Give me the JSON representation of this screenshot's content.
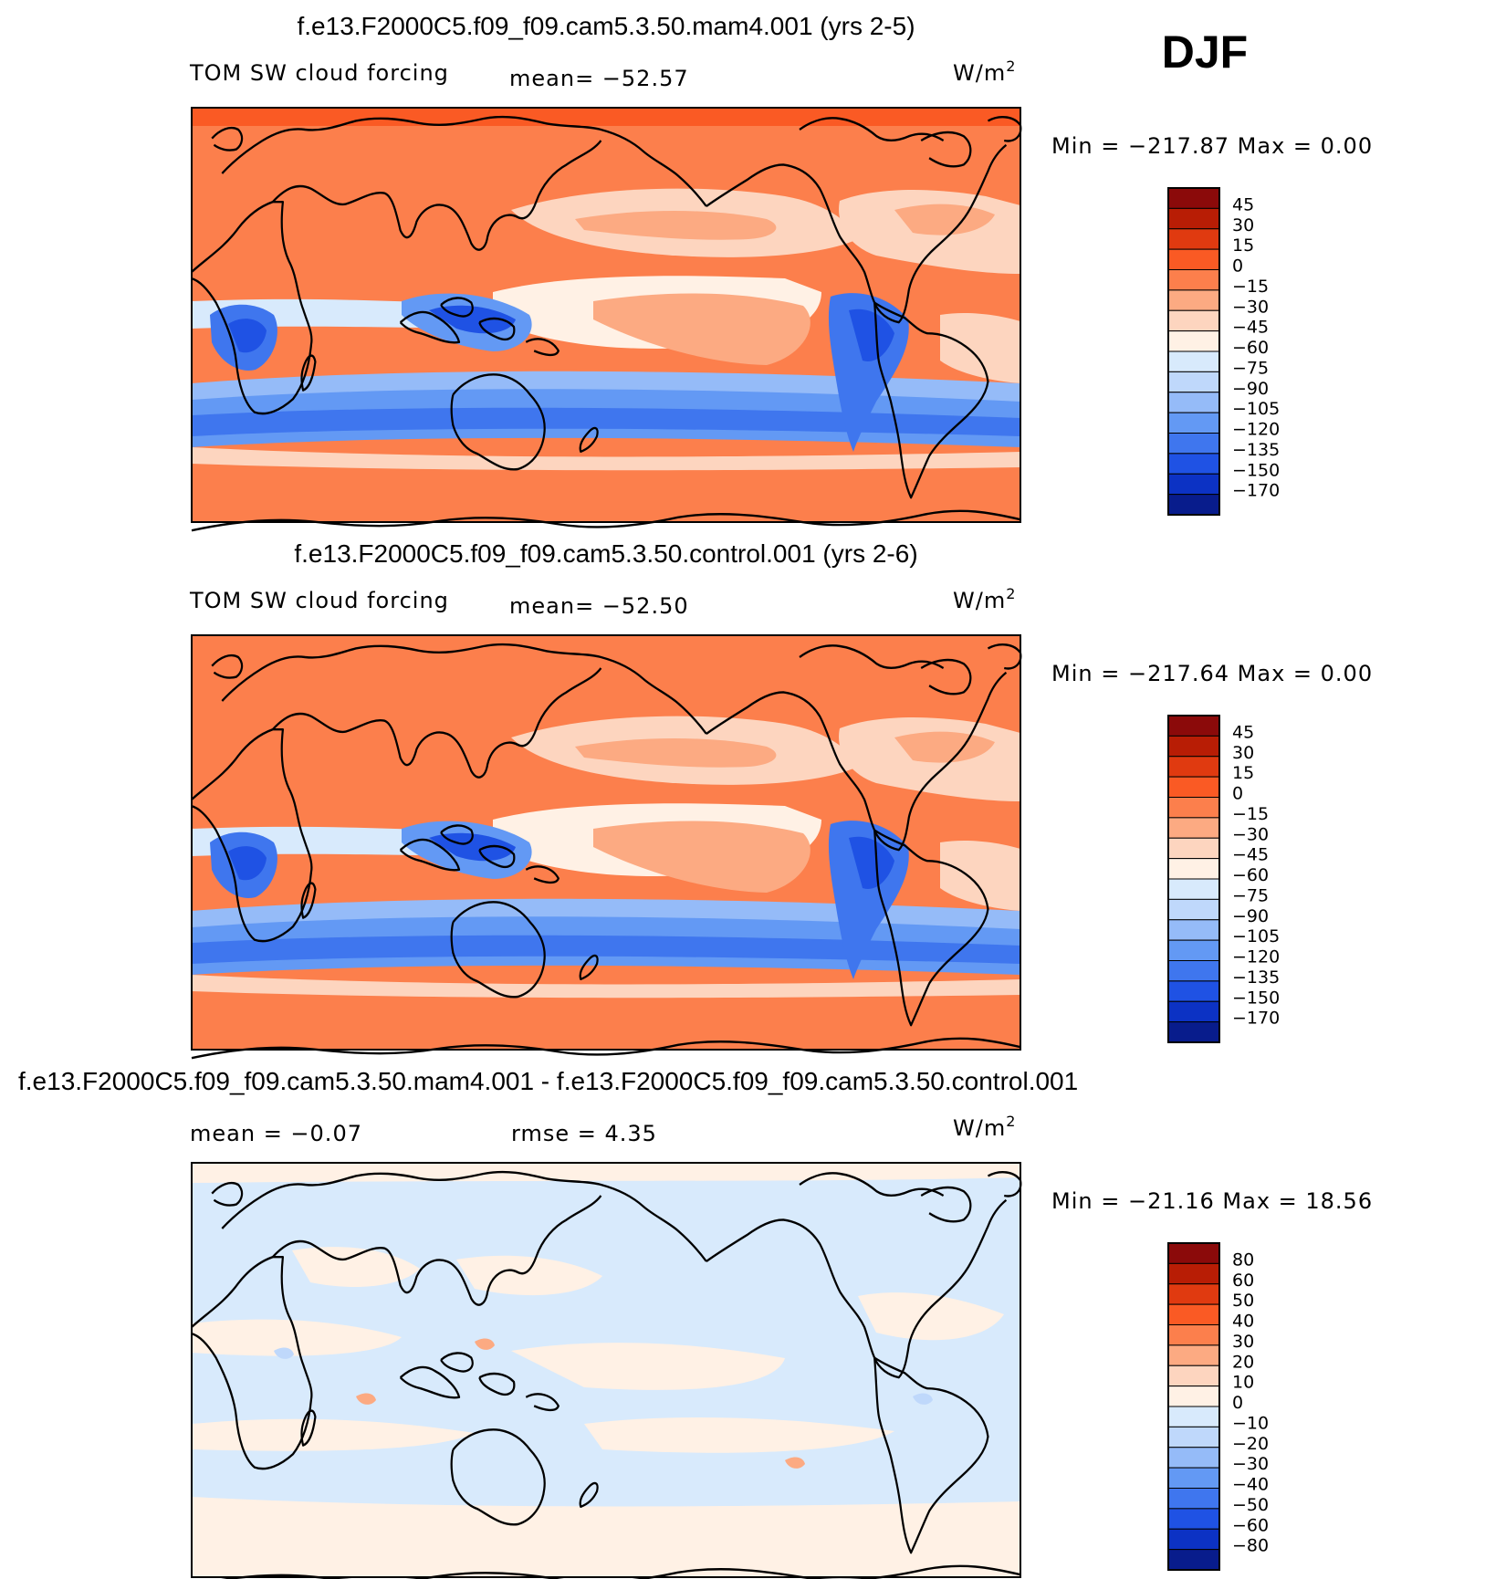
{
  "season_label": "DJF",
  "chart_data": [
    {
      "type": "heatmap",
      "title": "f.e13.F2000C5.f09_f09.cam5.3.50.mam4.001 (yrs 2-5)",
      "left_label": "TOM SW cloud forcing",
      "center_label": "mean= −52.57",
      "units_base": "W/m",
      "units_exp": "2",
      "stats": "Min = −217.87 Max =    0.00",
      "colorbar": {
        "levels": [
          "45",
          "30",
          "15",
          "0",
          "−15",
          "−30",
          "−45",
          "−60",
          "−75",
          "−90",
          "−105",
          "−120",
          "−135",
          "−150",
          "−170"
        ],
        "colors": [
          "#8b0a0a",
          "#b81d05",
          "#e03a10",
          "#fa5a24",
          "#fc7f4c",
          "#fcaa82",
          "#fdd5bf",
          "#fff1e5",
          "#d8eafc",
          "#bfd8fb",
          "#95bbf8",
          "#6399f4",
          "#3f76ee",
          "#1f52e4",
          "#0c32c4",
          "#081c8c"
        ]
      }
    },
    {
      "type": "heatmap",
      "title": "f.e13.F2000C5.f09_f09.cam5.3.50.control.001 (yrs 2-6)",
      "left_label": "TOM SW cloud forcing",
      "center_label": "mean= −52.50",
      "units_base": "W/m",
      "units_exp": "2",
      "stats": "Min = −217.64 Max =    0.00",
      "colorbar": {
        "levels": [
          "45",
          "30",
          "15",
          "0",
          "−15",
          "−30",
          "−45",
          "−60",
          "−75",
          "−90",
          "−105",
          "−120",
          "−135",
          "−150",
          "−170"
        ],
        "colors": [
          "#8b0a0a",
          "#b81d05",
          "#e03a10",
          "#fa5a24",
          "#fc7f4c",
          "#fcaa82",
          "#fdd5bf",
          "#fff1e5",
          "#d8eafc",
          "#bfd8fb",
          "#95bbf8",
          "#6399f4",
          "#3f76ee",
          "#1f52e4",
          "#0c32c4",
          "#081c8c"
        ]
      }
    },
    {
      "type": "heatmap",
      "title": "f.e13.F2000C5.f09_f09.cam5.3.50.mam4.001 - f.e13.F2000C5.f09_f09.cam5.3.50.control.001",
      "left_label": "mean =   −0.07",
      "center_label": "rmse =    4.35",
      "units_base": "W/m",
      "units_exp": "2",
      "stats": "Min = −21.16 Max =  18.56",
      "colorbar": {
        "levels": [
          "80",
          "60",
          "50",
          "40",
          "30",
          "20",
          "10",
          "0",
          "−10",
          "−20",
          "−30",
          "−40",
          "−50",
          "−60",
          "−80"
        ],
        "colors": [
          "#8b0a0a",
          "#b81d05",
          "#e03a10",
          "#fa5a24",
          "#fc7f4c",
          "#fcaa82",
          "#fdd5bf",
          "#fff1e5",
          "#d8eafc",
          "#bfd8fb",
          "#95bbf8",
          "#6399f4",
          "#3f76ee",
          "#1f52e4",
          "#0c32c4",
          "#081c8c"
        ]
      }
    }
  ]
}
